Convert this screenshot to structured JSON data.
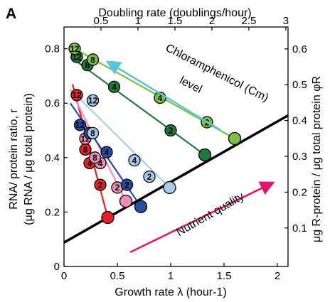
{
  "chart_data": {
    "type": "scatter",
    "panel_label": "A",
    "xlabel": "Growth rate λ (hour-1)",
    "ylabel": [
      "RNA/ protein ratio, r",
      "(μg RNA / μg total protein)"
    ],
    "top_xlabel": "Doubling rate (doublings/hour)",
    "right_ylabel": "μg R-protein / μg total protein φR",
    "xlim": [
      0,
      2.1
    ],
    "ylim": [
      0,
      0.88
    ],
    "x_ticks": [
      "0",
      "0.5",
      "1",
      "1.5",
      "2"
    ],
    "y_ticks": [
      "0",
      "0.2",
      "0.4",
      "0.6",
      "0.8"
    ],
    "top_ticks": [
      "0.5",
      "1",
      "1.5",
      "2",
      "2.5",
      "3"
    ],
    "right_ticks": [
      "0.1",
      "0.2",
      "0.3",
      "0.4",
      "0.5",
      "0.6"
    ],
    "annotations": {
      "chloramphenicol_line1": "Chloramphenicol (Cm)",
      "chloramphenicol_line2": "level",
      "nutrient": "Nutrient quality"
    },
    "arrow_colors": {
      "chloramphenicol": "#5cc6d8",
      "nutrient": "#e0156e"
    },
    "nutrient_line": {
      "x": [
        0,
        2.1
      ],
      "y": [
        0.088,
        0.555
      ],
      "color": "#000000"
    },
    "series": [
      {
        "color": "#e8202a",
        "line": [
          [
            0.41,
            0.18
          ],
          [
            0.08,
            0.67
          ]
        ],
        "points": [
          {
            "x": 0.41,
            "y": 0.18,
            "label": ""
          },
          {
            "x": 0.34,
            "y": 0.3,
            "label": "2"
          },
          {
            "x": 0.24,
            "y": 0.38,
            "label": "4"
          },
          {
            "x": 0.2,
            "y": 0.43,
            "label": "8"
          },
          {
            "x": 0.12,
            "y": 0.63,
            "label": "12"
          }
        ]
      },
      {
        "color": "#f08cb8",
        "line": [
          [
            0.58,
            0.24
          ],
          [
            0.06,
            0.65
          ]
        ],
        "points": [
          {
            "x": 0.58,
            "y": 0.24,
            "label": ""
          },
          {
            "x": 0.5,
            "y": 0.29,
            "label": "2"
          },
          {
            "x": 0.34,
            "y": 0.38,
            "label": "4"
          },
          {
            "x": 0.29,
            "y": 0.4,
            "label": "8"
          },
          {
            "x": 0.2,
            "y": 0.47,
            "label": "12"
          }
        ]
      },
      {
        "color": "#2b4aa3",
        "line": [
          [
            0.72,
            0.22
          ],
          [
            0.06,
            0.6
          ]
        ],
        "points": [
          {
            "x": 0.72,
            "y": 0.22,
            "label": ""
          },
          {
            "x": 0.59,
            "y": 0.3,
            "label": "2"
          },
          {
            "x": 0.4,
            "y": 0.42,
            "label": "4"
          },
          {
            "x": 0.24,
            "y": 0.49,
            "label": "8"
          },
          {
            "x": 0.15,
            "y": 0.52,
            "label": "12"
          }
        ]
      },
      {
        "color": "#a8cce8",
        "line": [
          [
            0.99,
            0.29
          ],
          [
            0.06,
            0.65
          ]
        ],
        "points": [
          {
            "x": 0.99,
            "y": 0.29,
            "label": ""
          },
          {
            "x": 0.8,
            "y": 0.33,
            "label": "2"
          },
          {
            "x": 0.66,
            "y": 0.39,
            "label": "4"
          },
          {
            "x": 0.27,
            "y": 0.49,
            "label": "8"
          },
          {
            "x": 0.27,
            "y": 0.61,
            "label": "12"
          }
        ]
      },
      {
        "color": "#1f7a3a",
        "line": [
          [
            1.32,
            0.41
          ],
          [
            0.06,
            0.77
          ]
        ],
        "points": [
          {
            "x": 1.32,
            "y": 0.41,
            "label": ""
          },
          {
            "x": 1.0,
            "y": 0.5,
            "label": "2"
          },
          {
            "x": 0.47,
            "y": 0.66,
            "label": "4"
          },
          {
            "x": 0.22,
            "y": 0.74,
            "label": "8"
          },
          {
            "x": 0.12,
            "y": 0.77,
            "label": "12"
          }
        ]
      },
      {
        "color": "#7bc043",
        "line": [
          [
            1.6,
            0.47
          ],
          [
            0.1,
            0.8
          ]
        ],
        "points": [
          {
            "x": 1.6,
            "y": 0.47,
            "label": ""
          },
          {
            "x": 1.34,
            "y": 0.53,
            "label": "2"
          },
          {
            "x": 0.9,
            "y": 0.62,
            "label": "4"
          },
          {
            "x": 0.27,
            "y": 0.76,
            "label": "8"
          },
          {
            "x": 0.1,
            "y": 0.8,
            "label": "12"
          }
        ]
      }
    ]
  }
}
